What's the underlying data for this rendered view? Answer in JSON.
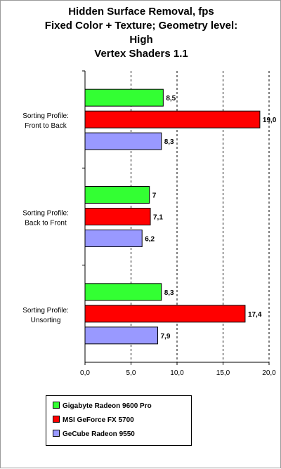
{
  "chart_data": {
    "type": "bar",
    "orientation": "horizontal",
    "title_lines": [
      "Hidden Surface Removal, fps",
      "Fixed Color + Texture; Geometry level:",
      "High",
      "Vertex Shaders 1.1"
    ],
    "categories": [
      [
        "Sorting Profile:",
        "Front to Back"
      ],
      [
        "Sorting Profile:",
        "Back to Front"
      ],
      [
        "Sorting Profile:",
        "Unsorting"
      ]
    ],
    "series": [
      {
        "name": "Gigabyte Radeon 9600 Pro",
        "color": "#33ff33",
        "values": [
          8.5,
          7,
          8.3
        ],
        "labels": [
          "8,5",
          "7",
          "8,3"
        ]
      },
      {
        "name": "MSI GeForce FX 5700",
        "color": "#ff0000",
        "values": [
          19.0,
          7.1,
          17.4
        ],
        "labels": [
          "19,0",
          "7,1",
          "17,4"
        ]
      },
      {
        "name": "GeCube Radeon 9550",
        "color": "#9999ff",
        "values": [
          8.3,
          6.2,
          7.9
        ],
        "labels": [
          "8,3",
          "6,2",
          "7,9"
        ]
      }
    ],
    "xlim": [
      0,
      20
    ],
    "xticks": [
      0,
      5,
      10,
      15,
      20
    ],
    "xtick_labels": [
      "0,0",
      "5,0",
      "10,0",
      "15,0",
      "20,0"
    ],
    "gridlines": "vertical dashed",
    "legend_position": "bottom-left"
  }
}
